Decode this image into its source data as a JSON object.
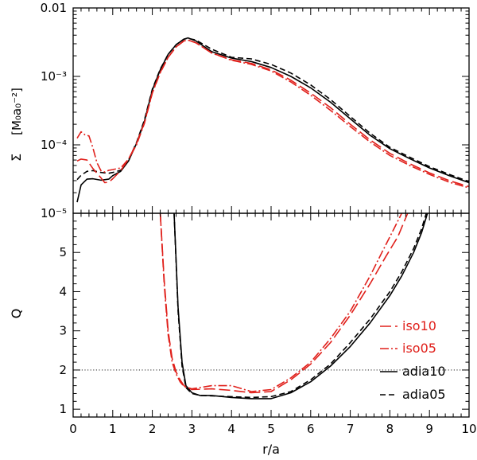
{
  "chart_data": {
    "type": "line",
    "xlabel": "r/a",
    "xlim": [
      0,
      10
    ],
    "x_ticks": [
      "0",
      "1",
      "2",
      "3",
      "4",
      "5",
      "6",
      "7",
      "8",
      "9",
      "10"
    ],
    "colors": {
      "iso": "#e0201b",
      "adia": "#000000",
      "frame": "#000000",
      "reference": "#000000"
    },
    "legend": [
      {
        "label": "iso10",
        "color": "#e0201b",
        "style": "long-dash"
      },
      {
        "label": "iso05",
        "color": "#e0201b",
        "style": "dash-dot"
      },
      {
        "label": "adia10",
        "color": "#000000",
        "style": "solid"
      },
      {
        "label": "adia05",
        "color": "#000000",
        "style": "dashed"
      }
    ],
    "panels": [
      {
        "id": "sigma",
        "ylabel_symbol": "Σ",
        "ylabel_unit": "[M₀a₀⁻²]",
        "yscale": "log",
        "ylim": [
          1e-05,
          0.01
        ],
        "y_tick_labels": [
          {
            "value": 0.01,
            "label": "0.01"
          },
          {
            "value": 0.001,
            "label": "10⁻³"
          },
          {
            "value": 0.0001,
            "label": "10⁻⁴"
          },
          {
            "value": 1e-05,
            "label": "10⁻⁵"
          }
        ],
        "series": [
          {
            "name": "adia10",
            "x": [
              0.1,
              0.2,
              0.35,
              0.5,
              0.7,
              0.9,
              1.0,
              1.2,
              1.4,
              1.6,
              1.8,
              2.0,
              2.2,
              2.4,
              2.6,
              2.8,
              2.9,
              3.1,
              3.5,
              4.0,
              4.5,
              5.0,
              5.5,
              6.0,
              6.5,
              7.0,
              7.5,
              8.0,
              8.5,
              9.0,
              9.5,
              10.0
            ],
            "y": [
              1.45e-05,
              2.6e-05,
              3.15e-05,
              3.2e-05,
              3.05e-05,
              3.15e-05,
              3.55e-05,
              4.1e-05,
              5.8e-05,
              0.000105,
              0.00022,
              0.00063,
              0.00125,
              0.0021,
              0.0029,
              0.0035,
              0.00365,
              0.0033,
              0.0023,
              0.00185,
              0.00165,
              0.00135,
              0.001,
              0.00068,
              0.00042,
              0.00024,
              0.000138,
              8.8e-05,
              6.3e-05,
              4.6e-05,
              3.55e-05,
              2.8e-05
            ]
          },
          {
            "name": "adia05",
            "x": [
              0.1,
              0.2,
              0.35,
              0.5,
              0.7,
              0.9,
              1.0,
              1.2,
              1.4,
              1.6,
              1.8,
              2.0,
              2.2,
              2.4,
              2.6,
              2.8,
              2.9,
              3.1,
              3.5,
              4.0,
              4.5,
              5.0,
              5.5,
              6.0,
              6.5,
              7.0,
              7.5,
              8.0,
              8.5,
              9.0,
              9.5,
              10.0
            ],
            "y": [
              3.1e-05,
              3.6e-05,
              4.1e-05,
              4.2e-05,
              3.95e-05,
              3.85e-05,
              3.95e-05,
              4.25e-05,
              6e-05,
              0.000108,
              0.00023,
              0.00065,
              0.00128,
              0.0021,
              0.0029,
              0.0035,
              0.0036,
              0.0034,
              0.0025,
              0.0019,
              0.0018,
              0.0015,
              0.00112,
              0.00075,
              0.00046,
              0.00026,
              0.000148,
              9.2e-05,
              6.6e-05,
              4.8e-05,
              3.7e-05,
              2.9e-05
            ]
          },
          {
            "name": "iso10",
            "x": [
              0.1,
              0.2,
              0.35,
              0.5,
              0.7,
              0.8,
              0.9,
              1.0,
              1.2,
              1.4,
              1.6,
              1.8,
              2.0,
              2.2,
              2.4,
              2.6,
              2.8,
              2.9,
              3.1,
              3.5,
              4.0,
              4.5,
              5.0,
              5.5,
              6.0,
              6.5,
              7.0,
              7.5,
              8.0,
              8.5,
              9.0,
              9.5,
              10.0
            ],
            "y": [
              5.8e-05,
              6.2e-05,
              6e-05,
              4.5e-05,
              3.3e-05,
              2.8e-05,
              2.85e-05,
              3.2e-05,
              4.2e-05,
              6.2e-05,
              0.000105,
              0.00021,
              0.00058,
              0.00115,
              0.0019,
              0.0027,
              0.0033,
              0.0034,
              0.0031,
              0.0022,
              0.00175,
              0.00155,
              0.00125,
              0.00088,
              0.00057,
              0.00035,
              0.0002,
              0.000118,
              7.5e-05,
              5.3e-05,
              3.9e-05,
              3e-05,
              2.45e-05
            ]
          },
          {
            "name": "iso05",
            "x": [
              0.1,
              0.2,
              0.3,
              0.4,
              0.5,
              0.6,
              0.7,
              0.8,
              0.9,
              1.0,
              1.2,
              1.4,
              1.6,
              1.8,
              2.0,
              2.2,
              2.4,
              2.6,
              2.8,
              2.9,
              3.1,
              3.5,
              4.0,
              4.5,
              5.0,
              5.5,
              6.0,
              6.5,
              7.0,
              7.5,
              8.0,
              8.5,
              9.0,
              9.5,
              10.0
            ],
            "y": [
              0.000125,
              0.000155,
              0.00014,
              0.000135,
              9e-05,
              5.5e-05,
              4.2e-05,
              4e-05,
              4.25e-05,
              4.35e-05,
              4.6e-05,
              6.2e-05,
              0.0001,
              0.000205,
              0.00057,
              0.00113,
              0.0019,
              0.0027,
              0.0033,
              0.0034,
              0.0031,
              0.0022,
              0.00172,
              0.0015,
              0.0012,
              0.00083,
              0.00053,
              0.00032,
              0.000185,
              0.00011,
              7e-05,
              5e-05,
              3.7e-05,
              2.85e-05,
              2.35e-05
            ]
          }
        ]
      },
      {
        "id": "Q",
        "ylabel_symbol": "Q",
        "ylabel_unit": "",
        "yscale": "linear",
        "ylim": [
          0.8,
          6.0
        ],
        "y_tick_labels": [
          {
            "value": 1,
            "label": "1"
          },
          {
            "value": 2,
            "label": "2"
          },
          {
            "value": 3,
            "label": "3"
          },
          {
            "value": 4,
            "label": "4"
          },
          {
            "value": 5,
            "label": "5"
          }
        ],
        "reference_line": {
          "y": 2,
          "style": "dotted"
        },
        "series": [
          {
            "name": "adia10",
            "x": [
              2.55,
              2.65,
              2.75,
              2.85,
              3.0,
              3.2,
              3.5,
              4.0,
              4.5,
              5.0,
              5.5,
              6.0,
              6.5,
              7.0,
              7.5,
              8.0,
              8.3,
              8.6,
              8.8,
              8.95
            ],
            "y": [
              6.0,
              3.6,
              2.2,
              1.6,
              1.42,
              1.35,
              1.35,
              1.3,
              1.27,
              1.27,
              1.42,
              1.7,
              2.1,
              2.6,
              3.2,
              3.9,
              4.4,
              5.0,
              5.5,
              6.0
            ]
          },
          {
            "name": "adia05",
            "x": [
              2.55,
              2.65,
              2.75,
              2.85,
              3.0,
              3.2,
              3.5,
              4.0,
              4.5,
              5.0,
              5.5,
              6.0,
              6.5,
              7.0,
              7.5,
              8.0,
              8.3,
              8.6,
              8.8,
              8.92
            ],
            "y": [
              6.0,
              3.5,
              2.1,
              1.55,
              1.4,
              1.35,
              1.34,
              1.32,
              1.3,
              1.32,
              1.45,
              1.75,
              2.15,
              2.7,
              3.3,
              4.0,
              4.5,
              5.1,
              5.6,
              6.0
            ]
          },
          {
            "name": "iso10",
            "x": [
              2.2,
              2.3,
              2.4,
              2.5,
              2.6,
              2.7,
              2.8,
              3.0,
              3.5,
              4.0,
              4.5,
              5.0,
              5.5,
              6.0,
              6.5,
              7.0,
              7.5,
              7.9,
              8.2,
              8.45
            ],
            "y": [
              6.0,
              4.3,
              3.0,
              2.3,
              1.95,
              1.75,
              1.6,
              1.5,
              1.52,
              1.48,
              1.42,
              1.45,
              1.75,
              2.15,
              2.7,
              3.4,
              4.2,
              4.9,
              5.4,
              6.0
            ]
          },
          {
            "name": "iso05",
            "x": [
              2.2,
              2.3,
              2.4,
              2.5,
              2.6,
              2.7,
              2.8,
              3.0,
              3.5,
              4.0,
              4.5,
              5.0,
              5.5,
              6.0,
              6.5,
              7.0,
              7.5,
              7.8,
              8.1,
              8.3
            ],
            "y": [
              6.0,
              4.2,
              2.9,
              2.2,
              1.9,
              1.7,
              1.58,
              1.52,
              1.6,
              1.6,
              1.45,
              1.5,
              1.8,
              2.2,
              2.8,
              3.5,
              4.4,
              5.0,
              5.6,
              6.0
            ]
          }
        ]
      }
    ]
  }
}
